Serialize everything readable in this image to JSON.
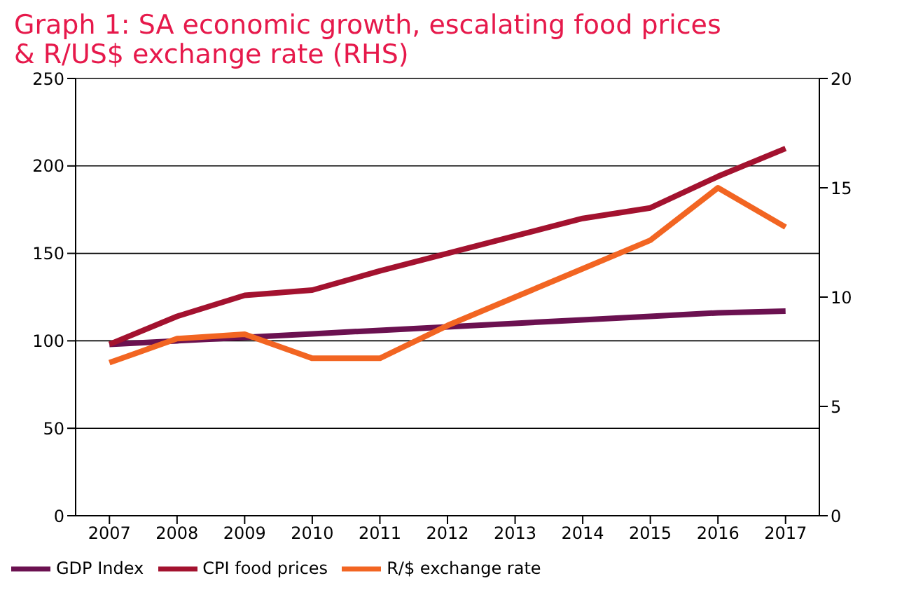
{
  "chart_data": {
    "type": "line",
    "title": "Graph 1: SA economic growth, escalating food prices\n& R/US$ exchange rate (RHS)",
    "categories": [
      "2007",
      "2008",
      "2009",
      "2010",
      "2011",
      "2012",
      "2013",
      "2014",
      "2015",
      "2016",
      "2017"
    ],
    "series": [
      {
        "name": "GDP Index",
        "color": "#6b1150",
        "values": [
          98,
          100,
          102,
          104,
          106,
          108,
          110,
          112,
          114,
          116,
          117
        ]
      },
      {
        "name": "CPI food prices",
        "color": "#a3122f",
        "values": [
          98,
          114,
          126,
          129,
          140,
          150,
          160,
          170,
          176,
          194,
          210
        ]
      },
      {
        "name": "R/$ exchange rate",
        "color": "#f26522",
        "axis": "y2",
        "values": [
          7.0,
          8.1,
          8.3,
          7.2,
          7.2,
          8.7,
          10.0,
          11.3,
          12.6,
          15.0,
          13.2
        ]
      }
    ],
    "ylim": [
      0,
      250
    ],
    "yticks": [
      0,
      50,
      100,
      150,
      200,
      250
    ],
    "y2lim": [
      0,
      20
    ],
    "y2ticks": [
      0,
      5,
      10,
      15,
      20
    ],
    "grid": "y",
    "legend": "bottom",
    "marker": "none",
    "line_style": "solid"
  }
}
